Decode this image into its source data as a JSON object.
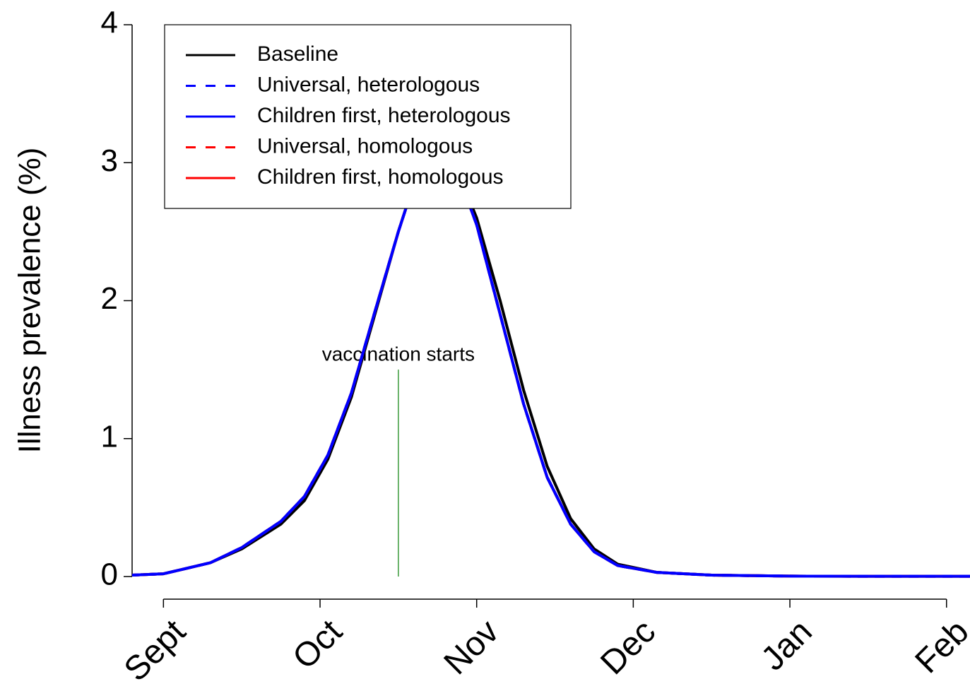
{
  "chart_data": {
    "type": "line",
    "ylabel": "Illness prevalence (%)",
    "x": [
      -0.2,
      0,
      0.3,
      0.5,
      0.75,
      0.9,
      1.05,
      1.2,
      1.35,
      1.5,
      1.6,
      1.75,
      1.9,
      2.0,
      2.15,
      2.3,
      2.45,
      2.6,
      2.75,
      2.9,
      3.15,
      3.5,
      4,
      4.5,
      5.15
    ],
    "series": [
      {
        "name": "Baseline",
        "color": "#000000",
        "dash": false,
        "values": [
          0.01,
          0.02,
          0.1,
          0.2,
          0.38,
          0.55,
          0.85,
          1.3,
          1.9,
          2.5,
          2.85,
          3.0,
          2.88,
          2.6,
          2.0,
          1.35,
          0.8,
          0.42,
          0.2,
          0.09,
          0.03,
          0.01,
          0.003,
          0.002,
          0.002
        ]
      },
      {
        "name": "Universal, heterologous",
        "color": "#0000ff",
        "dash": true,
        "values": [
          0.01,
          0.02,
          0.1,
          0.21,
          0.4,
          0.58,
          0.88,
          1.33,
          1.92,
          2.5,
          2.85,
          3.0,
          2.86,
          2.55,
          1.9,
          1.25,
          0.72,
          0.38,
          0.18,
          0.08,
          0.03,
          0.01,
          0.003,
          0.002,
          0.002
        ]
      },
      {
        "name": "Children first, heterologous",
        "color": "#0000ff",
        "dash": false,
        "values": [
          0.01,
          0.02,
          0.1,
          0.21,
          0.4,
          0.58,
          0.88,
          1.33,
          1.92,
          2.5,
          2.85,
          3.0,
          2.86,
          2.55,
          1.9,
          1.25,
          0.72,
          0.38,
          0.18,
          0.08,
          0.03,
          0.01,
          0.003,
          0.002,
          0.002
        ]
      },
      {
        "name": "Universal, homologous",
        "color": "#ff0000",
        "dash": true,
        "values": [
          0.01,
          0.02,
          0.1,
          0.21,
          0.4,
          0.58,
          0.88,
          1.33,
          1.92,
          2.5,
          2.85,
          3.0,
          2.86,
          2.55,
          1.9,
          1.25,
          0.72,
          0.38,
          0.18,
          0.08,
          0.03,
          0.01,
          0.003,
          0.002,
          0.002
        ]
      },
      {
        "name": "Children first, homologous",
        "color": "#ff0000",
        "dash": false,
        "values": [
          0.01,
          0.02,
          0.1,
          0.21,
          0.4,
          0.58,
          0.88,
          1.33,
          1.92,
          2.5,
          2.85,
          3.0,
          2.86,
          2.55,
          1.9,
          1.25,
          0.72,
          0.38,
          0.18,
          0.08,
          0.03,
          0.01,
          0.003,
          0.002,
          0.002
        ]
      }
    ],
    "xlim": [
      -0.2,
      5.15
    ],
    "xticks": [
      {
        "value": 0,
        "label": "Sept"
      },
      {
        "value": 1,
        "label": "Oct"
      },
      {
        "value": 2,
        "label": "Nov"
      },
      {
        "value": 3,
        "label": "Dec"
      },
      {
        "value": 4,
        "label": "Jan"
      },
      {
        "value": 5,
        "label": "Feb"
      }
    ],
    "ylim": [
      0,
      4
    ],
    "yticks": [
      0,
      1,
      2,
      3,
      4
    ],
    "legend": "top-left",
    "annotations": [
      {
        "text": "vaccination starts",
        "x": 1.5,
        "y": 1.5,
        "color": "#3a9a3a"
      }
    ]
  }
}
